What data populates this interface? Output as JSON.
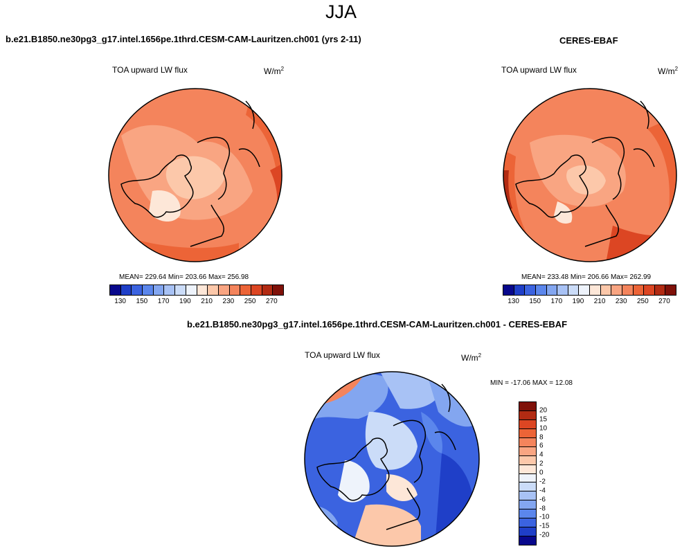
{
  "title": "JJA",
  "panels": [
    {
      "case_name": "b.e21.B1850.ne30pg3_g17.intel.1656pe.1thrd.CESM-CAM-Lauritzen.ch001 (yrs 2-11)",
      "variable": "TOA upward LW flux",
      "units_base": "W/m",
      "units_exp": "2",
      "stats_text": "MEAN= 229.64  Min= 203.66  Max= 256.98",
      "colorbar_labels": [
        "130",
        "150",
        "170",
        "190",
        "210",
        "230",
        "250",
        "270"
      ]
    },
    {
      "case_name": "CERES-EBAF",
      "variable": "TOA upward LW flux",
      "units_base": "W/m",
      "units_exp": "2",
      "stats_text": "MEAN= 233.48  Min= 206.66  Max= 262.99",
      "colorbar_labels": [
        "130",
        "150",
        "170",
        "190",
        "210",
        "230",
        "250",
        "270"
      ]
    }
  ],
  "diff": {
    "case_name": "b.e21.B1850.ne30pg3_g17.intel.1656pe.1thrd.CESM-CAM-Lauritzen.ch001 - CERES-EBAF",
    "variable": "TOA upward LW flux",
    "units_base": "W/m",
    "units_exp": "2",
    "stats_text": "MIN = -17.06 MAX =  12.08",
    "colorbar_labels": [
      "20",
      "15",
      "10",
      "8",
      "6",
      "4",
      "2",
      "0",
      "-2",
      "-4",
      "-6",
      "-8",
      "-10",
      "-15",
      "-20"
    ]
  },
  "colors": {
    "seq_palette": [
      "#08088c",
      "#1f3fc8",
      "#3b63e0",
      "#5b86ec",
      "#83a6f0",
      "#a8c2f5",
      "#cbdcf8",
      "#eef3fb",
      "#fde7d8",
      "#fcc8aa",
      "#f9a582",
      "#f4845c",
      "#ec6437",
      "#dc4623",
      "#b22b13",
      "#7f1109"
    ],
    "diff_palette": [
      "#7f1109",
      "#b22b13",
      "#dc4623",
      "#ec6437",
      "#f4845c",
      "#f9a582",
      "#fcc8aa",
      "#fde7d8",
      "#eef3fb",
      "#cbdcf8",
      "#a8c2f5",
      "#83a6f0",
      "#5b86ec",
      "#3b63e0",
      "#1f3fc8",
      "#08088c"
    ],
    "coastline": "#000000"
  }
}
